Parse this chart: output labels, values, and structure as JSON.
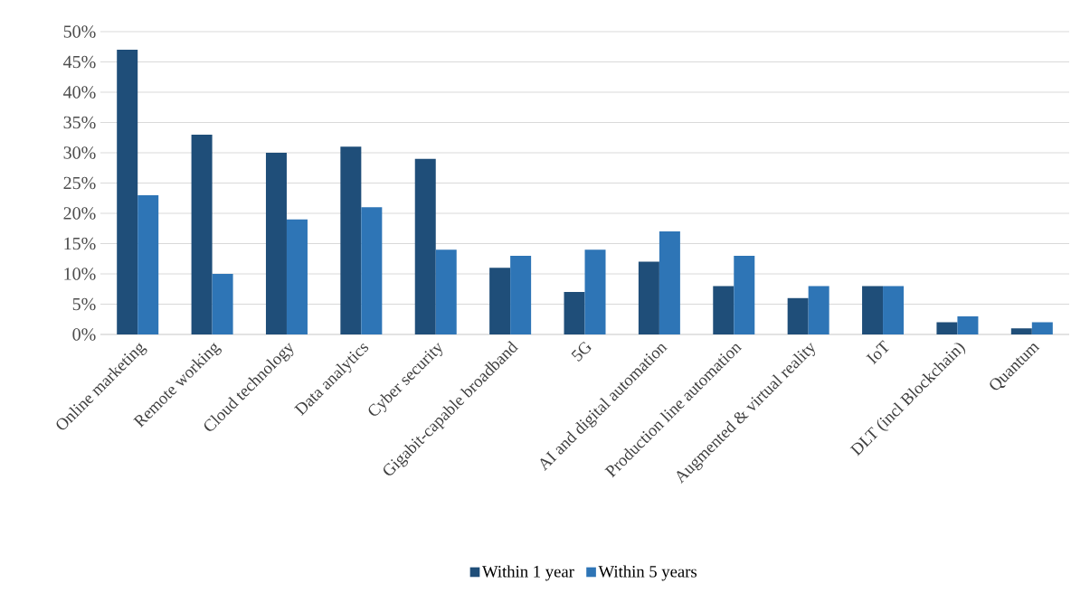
{
  "chart_data": {
    "type": "bar",
    "categories": [
      "Online marketing",
      "Remote working",
      "Cloud technology",
      "Data analytics",
      "Cyber security",
      "Gigabit-capable broadband",
      "5G",
      "AI and digital automation",
      "Production line automation",
      "Augmented & virtual reality",
      "IoT",
      "DLT (incl Blockchain)",
      "Quantum"
    ],
    "series": [
      {
        "name": "Within 1 year",
        "color": "#1f4e79",
        "values": [
          47,
          33,
          30,
          31,
          29,
          11,
          7,
          12,
          8,
          6,
          8,
          2,
          1
        ]
      },
      {
        "name": "Within 5 years",
        "color": "#2e75b6",
        "values": [
          23,
          10,
          19,
          21,
          14,
          13,
          14,
          17,
          13,
          8,
          8,
          3,
          2
        ]
      }
    ],
    "ylim": [
      0,
      50
    ],
    "yticks": [
      {
        "value": 0,
        "label": "0%"
      },
      {
        "value": 5,
        "label": "5%"
      },
      {
        "value": 10,
        "label": "10%"
      },
      {
        "value": 15,
        "label": "15%"
      },
      {
        "value": 20,
        "label": "20%"
      },
      {
        "value": 25,
        "label": "25%"
      },
      {
        "value": 30,
        "label": "30%"
      },
      {
        "value": 35,
        "label": "35%"
      },
      {
        "value": 40,
        "label": "40%"
      },
      {
        "value": 45,
        "label": "45%"
      },
      {
        "value": 50,
        "label": "50%"
      }
    ],
    "grid": "y",
    "legend": "bottom"
  }
}
